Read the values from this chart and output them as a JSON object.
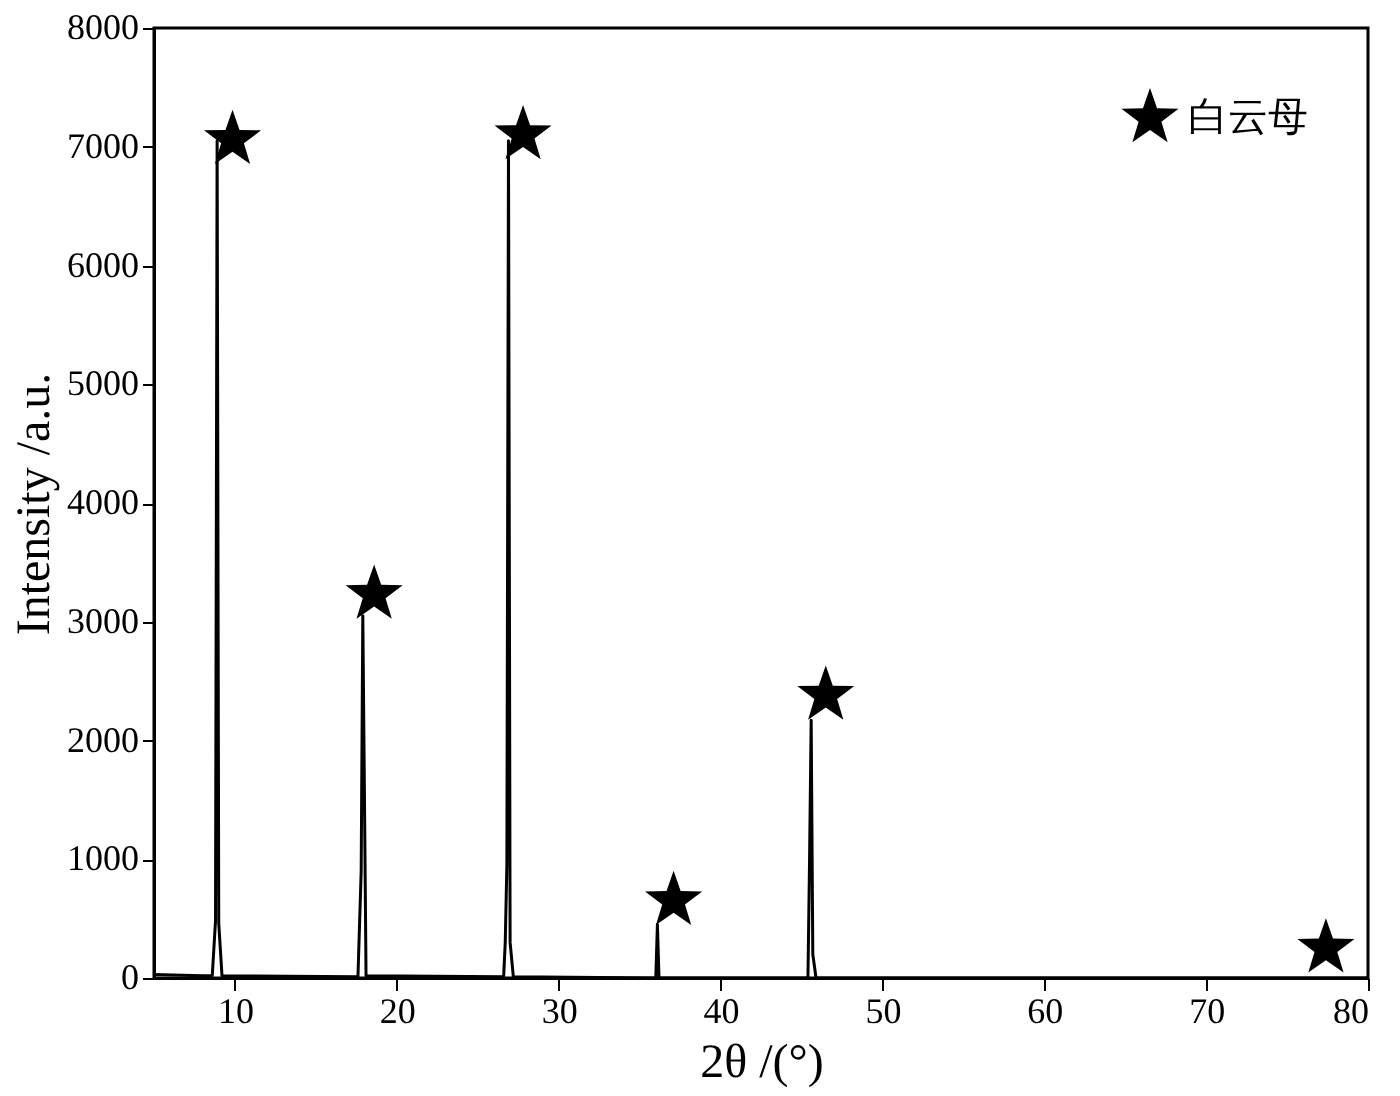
{
  "chart_data": {
    "type": "line",
    "xlabel": "2θ /(°)",
    "ylabel": "Intensity /a.u.",
    "xlim": [
      5,
      80
    ],
    "xticks": [
      10,
      20,
      30,
      40,
      50,
      60,
      70,
      80
    ],
    "ylim": [
      0,
      8000
    ],
    "yticks": [
      0,
      1000,
      2000,
      3000,
      4000,
      5000,
      6000,
      7000,
      8000
    ],
    "grid": false,
    "legend": "top right",
    "series": [
      {
        "color": "#000000",
        "marker": "none",
        "x": [
          5,
          8.0,
          8.6,
          8.8,
          8.9,
          9.0,
          9.2,
          17.6,
          17.8,
          17.9,
          18.0,
          18.1,
          26.6,
          26.7,
          26.8,
          26.9,
          27.0,
          27.2,
          36.0,
          36.1,
          36.2,
          45.4,
          45.5,
          45.6,
          45.7,
          45.9,
          80
        ],
        "values": [
          30,
          20,
          20,
          480,
          7050,
          460,
          20,
          10,
          900,
          3050,
          1550,
          20,
          10,
          300,
          950,
          7050,
          300,
          10,
          0,
          450,
          0,
          0,
          1000,
          2170,
          200,
          0,
          0
        ]
      },
      {
        "type": "scatter",
        "name": "白云母",
        "color": "#000000",
        "marker": "star",
        "x": [
          9.85,
          18.6,
          27.8,
          37.1,
          46.5,
          77.4
        ],
        "values": [
          7060,
          3230,
          7100,
          650,
          2380,
          250
        ]
      }
    ]
  }
}
